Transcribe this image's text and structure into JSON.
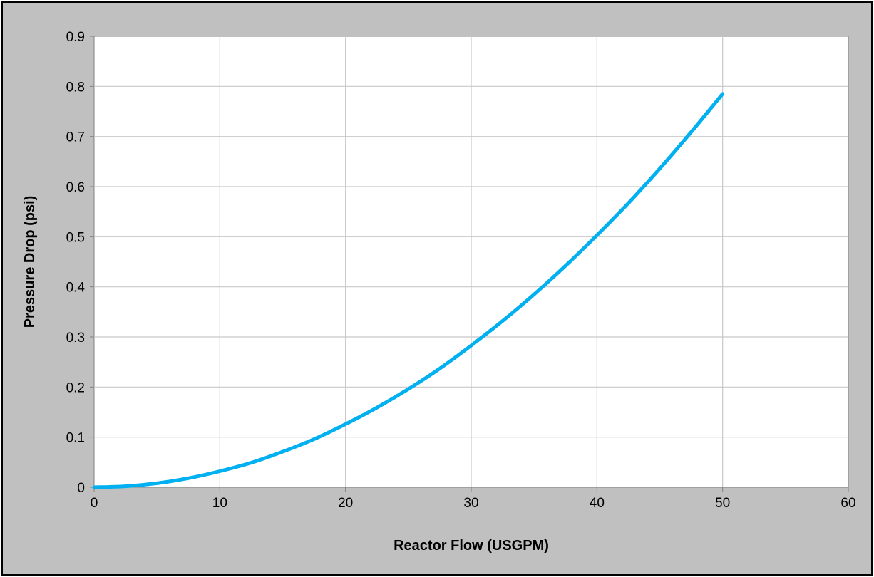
{
  "chart_data": {
    "type": "line",
    "title": "",
    "xlabel": "Reactor Flow (USGPM)",
    "ylabel": "Pressure Drop (psi)",
    "xlim": [
      0,
      60
    ],
    "ylim": [
      0,
      0.9
    ],
    "x_ticks": [
      "0",
      "10",
      "20",
      "30",
      "40",
      "50",
      "60"
    ],
    "y_ticks": [
      "0",
      "0.1",
      "0.2",
      "0.3",
      "0.4",
      "0.5",
      "0.6",
      "0.7",
      "0.8",
      "0.9"
    ],
    "grid": true,
    "legend": "none",
    "series": [
      {
        "color": "#00b0f0",
        "x": [
          0,
          2.5,
          5,
          7.5,
          10,
          12.5,
          15,
          17.5,
          20,
          22.5,
          25,
          27.5,
          30,
          32.5,
          35,
          37.5,
          40,
          42.5,
          45,
          47.5,
          50
        ],
        "y": [
          0,
          0.002,
          0.008,
          0.018,
          0.032,
          0.049,
          0.071,
          0.096,
          0.126,
          0.159,
          0.196,
          0.237,
          0.283,
          0.332,
          0.385,
          0.442,
          0.503,
          0.567,
          0.636,
          0.709,
          0.785
        ]
      }
    ]
  }
}
